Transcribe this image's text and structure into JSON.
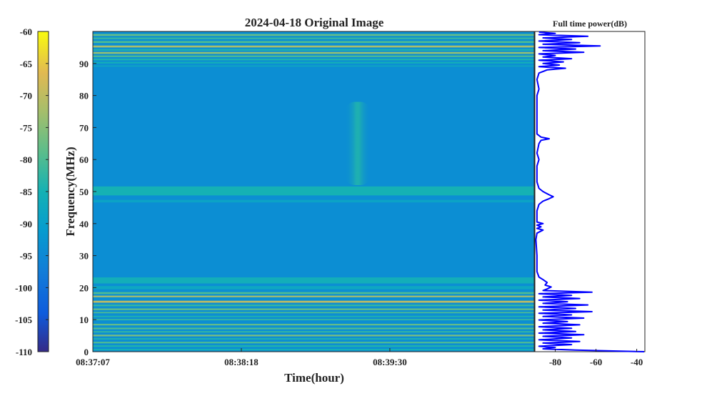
{
  "chart_data": [
    {
      "type": "heatmap",
      "title": "2024-04-18 Original Image",
      "xlabel": "Time(hour)",
      "ylabel": "Frequency(MHz)",
      "x_tick_labels": [
        "08:37:07",
        "08:38:18",
        "08:39:30"
      ],
      "y_ticks": [
        0,
        10,
        20,
        30,
        40,
        50,
        60,
        70,
        80,
        90
      ],
      "ylim": [
        0,
        100
      ],
      "colorbar": {
        "ticks": [
          -60,
          -65,
          -70,
          -75,
          -80,
          -85,
          -90,
          -95,
          -100,
          -105,
          -110
        ],
        "range": [
          -110,
          -60
        ],
        "colormap": "parula"
      },
      "base_level_db": -94,
      "bands": [
        {
          "freq": [
            98.6,
            99.2
          ],
          "level": -78
        },
        {
          "freq": [
            97.6,
            98.1
          ],
          "level": -82
        },
        {
          "freq": [
            96.4,
            97.0
          ],
          "level": -80
        },
        {
          "freq": [
            95.0,
            95.6
          ],
          "level": -72
        },
        {
          "freq": [
            94.0,
            94.5
          ],
          "level": -84
        },
        {
          "freq": [
            93.0,
            93.6
          ],
          "level": -74
        },
        {
          "freq": [
            92.0,
            92.5
          ],
          "level": -80
        },
        {
          "freq": [
            91.0,
            91.5
          ],
          "level": -84
        },
        {
          "freq": [
            90.0,
            90.5
          ],
          "level": -86
        },
        {
          "freq": [
            89.0,
            89.4
          ],
          "level": -88
        },
        {
          "freq": [
            48.8,
            51.6
          ],
          "level": -85
        },
        {
          "freq": [
            46.6,
            47.4
          ],
          "level": -89
        },
        {
          "freq": [
            21.3,
            23.2
          ],
          "level": -86
        },
        {
          "freq": [
            19.5,
            20.5
          ],
          "level": -88
        },
        {
          "freq": [
            18.0,
            18.6
          ],
          "level": -80
        },
        {
          "freq": [
            17.0,
            17.5
          ],
          "level": -72
        },
        {
          "freq": [
            15.3,
            15.9
          ],
          "level": -70
        },
        {
          "freq": [
            14.2,
            14.7
          ],
          "level": -82
        },
        {
          "freq": [
            13.0,
            13.5
          ],
          "level": -78
        },
        {
          "freq": [
            12.0,
            12.4
          ],
          "level": -80
        },
        {
          "freq": [
            10.8,
            11.2
          ],
          "level": -84
        },
        {
          "freq": [
            9.8,
            10.2
          ],
          "level": -82
        },
        {
          "freq": [
            8.2,
            8.7
          ],
          "level": -78
        },
        {
          "freq": [
            7.0,
            7.5
          ],
          "level": -80
        },
        {
          "freq": [
            6.0,
            6.4
          ],
          "level": -82
        },
        {
          "freq": [
            4.8,
            5.3
          ],
          "level": -76
        },
        {
          "freq": [
            3.8,
            4.2
          ],
          "level": -84
        },
        {
          "freq": [
            2.6,
            3.1
          ],
          "level": -80
        },
        {
          "freq": [
            1.5,
            2.0
          ],
          "level": -84
        },
        {
          "freq": [
            0.4,
            0.9
          ],
          "level": -86
        }
      ],
      "burst": {
        "time_fraction": 0.6,
        "freq_range": [
          52,
          78
        ],
        "peak_level": -84
      }
    },
    {
      "type": "line",
      "title": "Full time power(dB)",
      "x_ticks": [
        -80,
        -60,
        -40
      ],
      "xlim": [
        -90,
        -36
      ],
      "ylim": [
        0,
        100
      ],
      "series": [
        {
          "color": "#0000ff",
          "points": [
            [
              -36,
              0.0
            ],
            [
              -70,
              0.5
            ],
            [
              -86,
              0.9
            ],
            [
              -80,
              1.3
            ],
            [
              -88,
              1.7
            ],
            [
              -72,
              2.2
            ],
            [
              -86,
              2.7
            ],
            [
              -68,
              3.2
            ],
            [
              -88,
              3.7
            ],
            [
              -72,
              4.3
            ],
            [
              -86,
              4.8
            ],
            [
              -66,
              5.3
            ],
            [
              -88,
              5.8
            ],
            [
              -70,
              6.3
            ],
            [
              -86,
              6.8
            ],
            [
              -72,
              7.3
            ],
            [
              -88,
              7.8
            ],
            [
              -68,
              8.4
            ],
            [
              -86,
              8.9
            ],
            [
              -74,
              9.4
            ],
            [
              -88,
              9.9
            ],
            [
              -66,
              10.5
            ],
            [
              -86,
              11.0
            ],
            [
              -72,
              11.5
            ],
            [
              -88,
              12.0
            ],
            [
              -62,
              12.5
            ],
            [
              -86,
              13.0
            ],
            [
              -70,
              13.5
            ],
            [
              -88,
              14.0
            ],
            [
              -64,
              14.6
            ],
            [
              -86,
              15.1
            ],
            [
              -74,
              15.6
            ],
            [
              -88,
              16.1
            ],
            [
              -68,
              16.6
            ],
            [
              -86,
              17.1
            ],
            [
              -72,
              17.6
            ],
            [
              -88,
              18.1
            ],
            [
              -62,
              18.6
            ],
            [
              -86,
              19.1
            ],
            [
              -84,
              19.6
            ],
            [
              -82,
              20.2
            ],
            [
              -85,
              20.8
            ],
            [
              -84,
              21.6
            ],
            [
              -86,
              22.5
            ],
            [
              -88,
              23.3
            ],
            [
              -89,
              25.0
            ],
            [
              -89,
              30.0
            ],
            [
              -89.5,
              35.0
            ],
            [
              -89,
              37.0
            ],
            [
              -86,
              38.0
            ],
            [
              -89,
              38.5
            ],
            [
              -87,
              39.0
            ],
            [
              -89,
              39.5
            ],
            [
              -86,
              40.0
            ],
            [
              -89,
              40.5
            ],
            [
              -89,
              44.0
            ],
            [
              -88,
              46.0
            ],
            [
              -86,
              47.0
            ],
            [
              -83,
              47.8
            ],
            [
              -81,
              48.4
            ],
            [
              -83,
              49.0
            ],
            [
              -86,
              50.0
            ],
            [
              -88,
              51.0
            ],
            [
              -89,
              53.0
            ],
            [
              -89,
              58.0
            ],
            [
              -88,
              60.0
            ],
            [
              -89,
              62.0
            ],
            [
              -88,
              65.0
            ],
            [
              -87,
              66.0
            ],
            [
              -83,
              66.5
            ],
            [
              -87,
              67.0
            ],
            [
              -89,
              68.0
            ],
            [
              -89,
              75.0
            ],
            [
              -89,
              80.0
            ],
            [
              -88,
              82.0
            ],
            [
              -89,
              85.0
            ],
            [
              -88,
              87.0
            ],
            [
              -84,
              88.0
            ],
            [
              -75,
              88.5
            ],
            [
              -88,
              89.0
            ],
            [
              -78,
              89.5
            ],
            [
              -86,
              90.0
            ],
            [
              -76,
              90.5
            ],
            [
              -88,
              91.0
            ],
            [
              -72,
              91.5
            ],
            [
              -86,
              92.0
            ],
            [
              -80,
              92.5
            ],
            [
              -88,
              93.0
            ],
            [
              -66,
              93.5
            ],
            [
              -86,
              94.0
            ],
            [
              -70,
              94.5
            ],
            [
              -88,
              95.0
            ],
            [
              -58,
              95.5
            ],
            [
              -86,
              96.0
            ],
            [
              -68,
              96.5
            ],
            [
              -88,
              97.0
            ],
            [
              -72,
              97.5
            ],
            [
              -86,
              98.0
            ],
            [
              -64,
              98.5
            ],
            [
              -88,
              99.0
            ],
            [
              -80,
              99.4
            ],
            [
              -88,
              99.8
            ]
          ]
        }
      ]
    }
  ]
}
